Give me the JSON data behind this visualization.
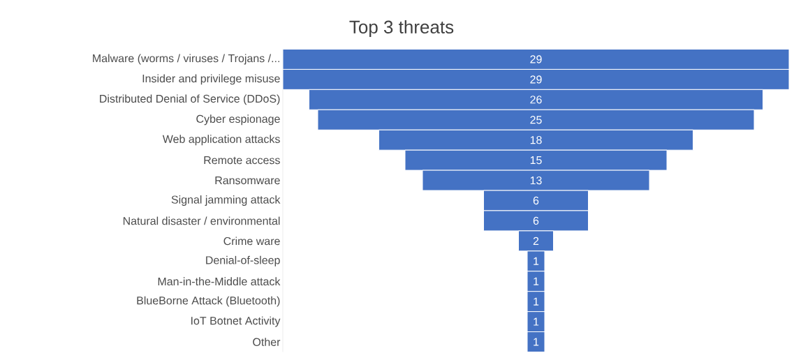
{
  "chart_data": {
    "type": "other",
    "title": "Top 3 threats",
    "categories": [
      "Malware (worms / viruses / Trojans /...",
      "Insider and privilege misuse",
      "Distributed Denial of Service (DDoS)",
      "Cyber espionage",
      "Web application attacks",
      "Remote access",
      "Ransomware",
      "Signal jamming attack",
      "Natural disaster / environmental",
      "Crime ware",
      "Denial-of-sleep",
      "Man-in-the-Middle attack",
      "BlueBorne Attack (Bluetooth)",
      "IoT Botnet Activity",
      "Other"
    ],
    "values": [
      29,
      29,
      26,
      25,
      18,
      15,
      13,
      6,
      6,
      2,
      1,
      1,
      1,
      1,
      1
    ],
    "color": "#4472c4",
    "data_labels": true
  }
}
